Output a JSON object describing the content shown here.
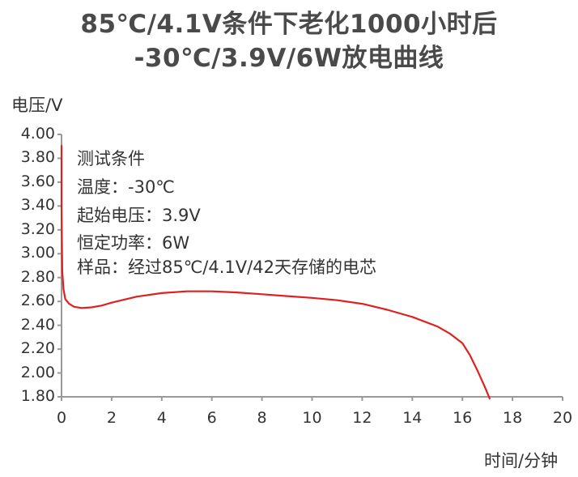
{
  "chart_data": {
    "type": "line",
    "title_line1": "85℃/4.1V条件下老化1000小时后",
    "title_line2": "-30℃/3.9V/6W放电曲线",
    "ylabel": "电压/V",
    "xlabel": "时间/分钟",
    "xlim": [
      0,
      20
    ],
    "ylim": [
      1.8,
      4.0
    ],
    "x_ticks": [
      "0",
      "2",
      "4",
      "6",
      "8",
      "10",
      "12",
      "14",
      "16",
      "18",
      "20"
    ],
    "y_ticks": [
      "4.00",
      "3.80",
      "3.60",
      "3.40",
      "3.20",
      "3.00",
      "2.80",
      "2.60",
      "2.40",
      "2.20",
      "2.00",
      "1.80"
    ],
    "grid": false,
    "series": [
      {
        "color": "#e02020",
        "x": [
          0.0,
          0.0,
          0.03,
          0.08,
          0.15,
          0.3,
          0.5,
          0.8,
          1.2,
          1.6,
          2.0,
          3.0,
          4.0,
          5.0,
          6.0,
          7.0,
          8.0,
          9.0,
          10.0,
          11.0,
          12.0,
          13.0,
          14.0,
          15.0,
          15.5,
          16.0,
          16.3,
          16.6,
          16.9,
          17.1
        ],
        "y": [
          3.91,
          3.4,
          2.85,
          2.7,
          2.62,
          2.58,
          2.555,
          2.545,
          2.55,
          2.565,
          2.59,
          2.64,
          2.67,
          2.685,
          2.685,
          2.675,
          2.66,
          2.645,
          2.63,
          2.61,
          2.58,
          2.53,
          2.47,
          2.39,
          2.33,
          2.25,
          2.15,
          2.02,
          1.88,
          1.78
        ]
      }
    ],
    "annotations": [
      "测试条件",
      "温度：-30℃",
      "起始电压：3.9V",
      "恒定功率：6W",
      "样品：经过85℃/4.1V/42天存储的电芯"
    ]
  }
}
